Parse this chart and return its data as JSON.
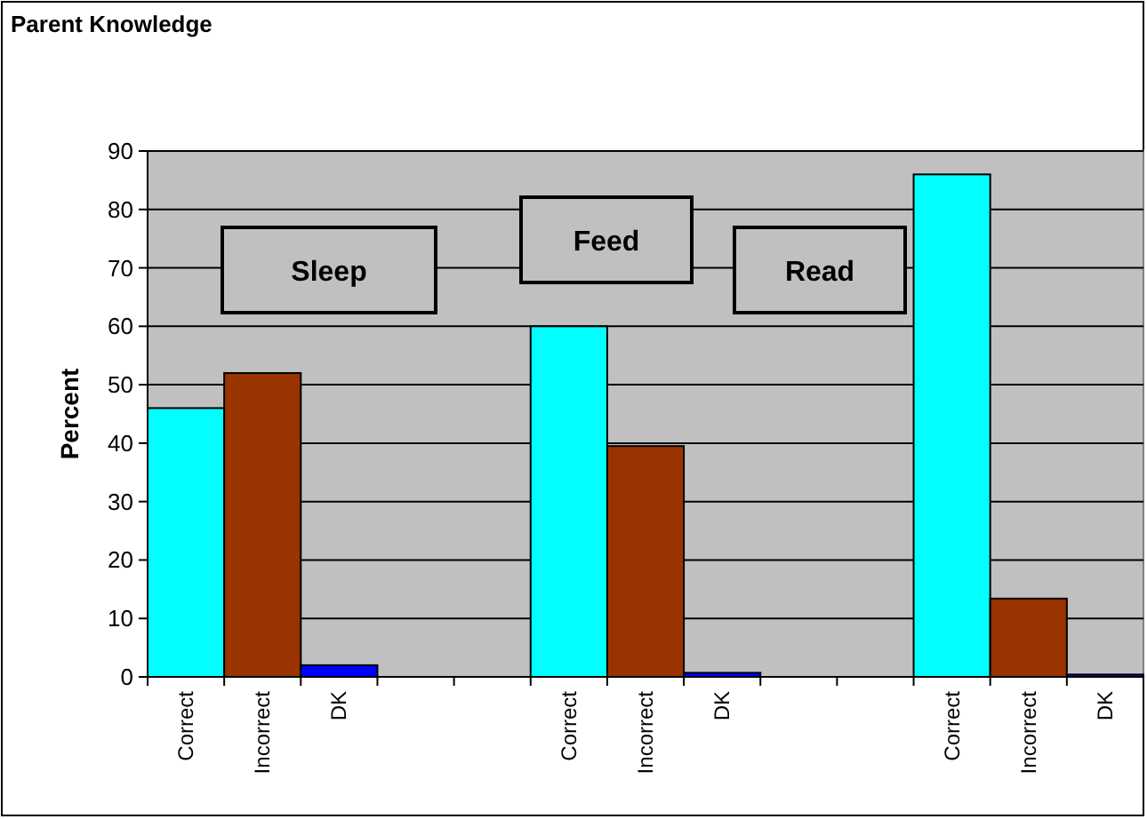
{
  "chart_data": {
    "type": "bar",
    "title": "Parent Knowledge",
    "ylabel": "Percent",
    "categories": [
      "Correct",
      "Incorrect",
      "DK",
      null,
      null,
      "Correct",
      "Incorrect",
      "DK",
      null,
      null,
      "Correct",
      "Incorrect",
      "DK"
    ],
    "values": [
      46,
      52,
      2,
      null,
      null,
      60,
      39.5,
      0.7,
      null,
      null,
      86,
      13.4,
      0.4
    ],
    "colors": [
      "#00ffff",
      "#993300",
      "#0000ff",
      null,
      null,
      "#00ffff",
      "#993300",
      "#0000ff",
      null,
      null,
      "#00ffff",
      "#993300",
      "#0000ff"
    ],
    "ylim": [
      0,
      90
    ],
    "yticks": [
      0,
      10,
      20,
      30,
      40,
      50,
      60,
      70,
      80,
      90
    ],
    "grid": "y",
    "annotations": [
      "Sleep",
      "Feed",
      "Read"
    ]
  }
}
